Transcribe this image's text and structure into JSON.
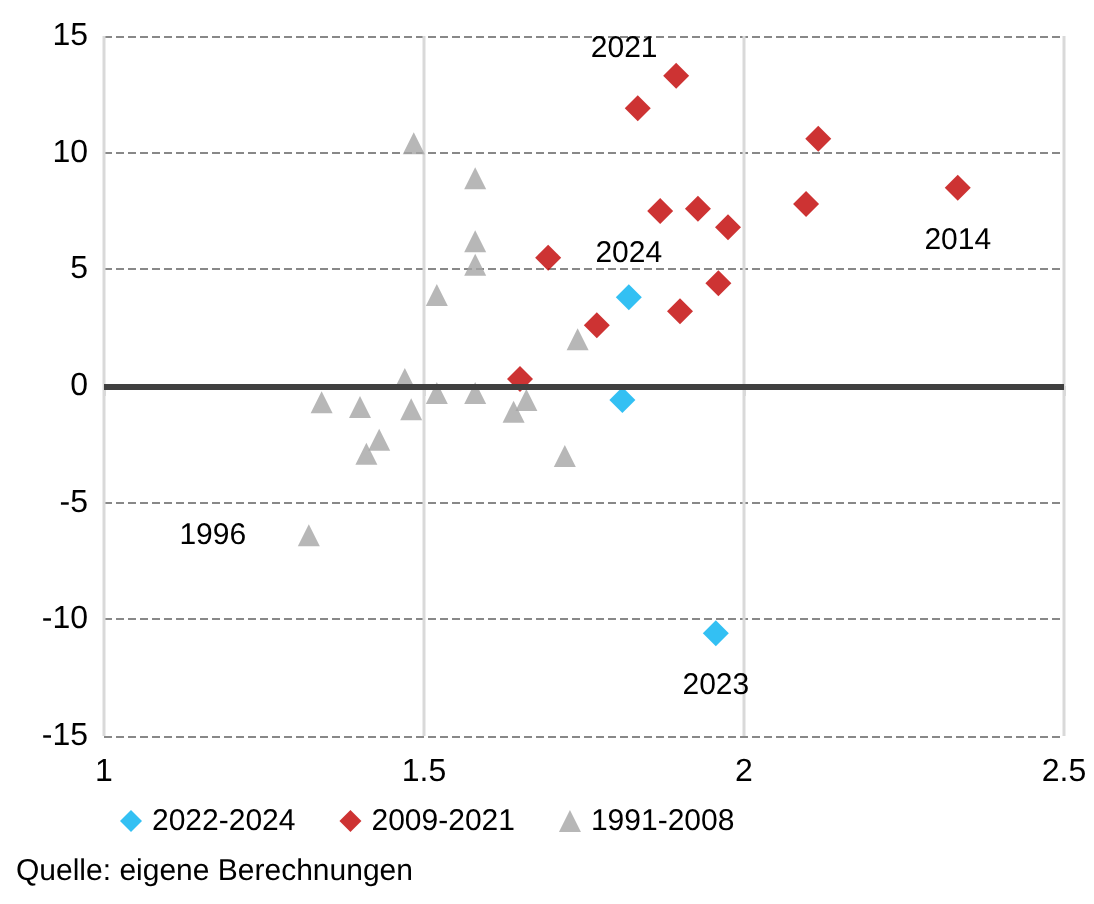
{
  "chart_data": {
    "type": "scatter",
    "xlim": [
      1,
      2.5
    ],
    "xticks": [
      1,
      1.5,
      2,
      2.5
    ],
    "ylim": [
      -15,
      15
    ],
    "yticks": [
      -15,
      -10,
      -5,
      0,
      5,
      10,
      15
    ],
    "grid": true,
    "legend": "bottom",
    "series": [
      {
        "name": "2022-2024",
        "color": "#00b0f0",
        "marker": "diamond",
        "x": [
          1.82,
          1.81,
          1.956
        ],
        "values": [
          3.8,
          -0.6,
          -10.6
        ]
      },
      {
        "name": "2009-2021",
        "color": "#c00000",
        "marker": "diamond",
        "x": [
          1.894,
          1.834,
          2.116,
          2.334,
          2.097,
          1.869,
          1.928,
          1.975,
          1.96,
          1.9,
          1.77,
          1.694,
          1.65
        ],
        "values": [
          13.3,
          11.9,
          10.6,
          8.5,
          7.8,
          7.5,
          7.6,
          6.8,
          4.4,
          3.2,
          2.6,
          5.5,
          0.3
        ]
      },
      {
        "name": "1991-2008",
        "color": "#a5a5a5",
        "marker": "triangle",
        "x": [
          1.484,
          1.58,
          1.58,
          1.58,
          1.52,
          1.47,
          1.52,
          1.58,
          1.34,
          1.4,
          1.48,
          1.43,
          1.41,
          1.66,
          1.64,
          1.72,
          1.74,
          1.32
        ],
        "values": [
          10.4,
          8.9,
          6.2,
          5.2,
          3.9,
          0.3,
          -0.3,
          -0.3,
          -0.7,
          -0.9,
          -1.0,
          -2.3,
          -2.9,
          -0.6,
          -1.1,
          -3.0,
          2.0,
          -6.4
        ]
      }
    ],
    "ref_lines": [
      {
        "axis": "y",
        "value": 0,
        "color": "#404040"
      }
    ],
    "annotations": [
      {
        "text": "2021",
        "x": 1.894,
        "y": 13.3
      },
      {
        "text": "2014",
        "x": 2.334,
        "y": 8.5
      },
      {
        "text": "2024",
        "x": 1.82,
        "y": 3.8
      },
      {
        "text": "2023",
        "x": 1.956,
        "y": -10.6
      },
      {
        "text": "1996",
        "x": 1.32,
        "y": -6.4
      },
      "Quelle: eigene Berechnungen"
    ]
  }
}
